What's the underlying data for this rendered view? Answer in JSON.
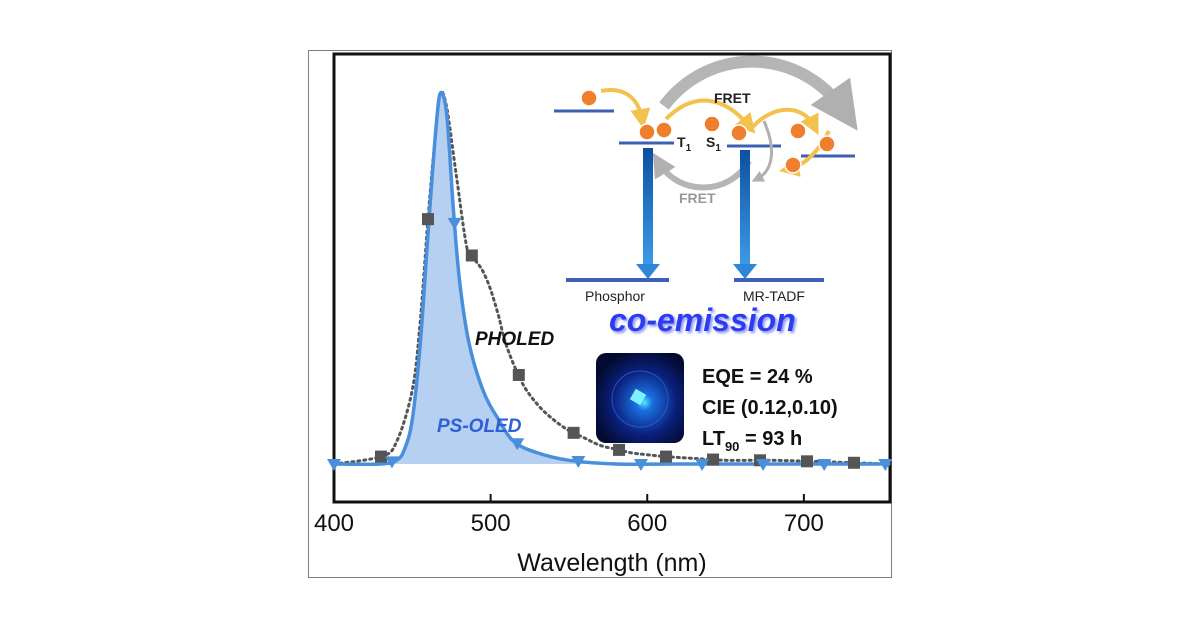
{
  "chart_data": {
    "type": "line",
    "title": "",
    "xlabel": "Wavelength (nm)",
    "ylabel": "",
    "xlim": [
      400,
      755
    ],
    "ylim": [
      0,
      1
    ],
    "x_ticks": [
      "400",
      "500",
      "600",
      "700"
    ],
    "grid": false,
    "series": [
      {
        "name": "PHOLED",
        "color": "#555555",
        "style": "dotted line with square markers",
        "x": [
          400,
          430,
          440,
          450,
          455,
          460,
          465,
          468,
          472,
          478,
          485,
          490,
          495,
          500,
          505,
          510,
          520,
          530,
          540,
          550,
          560,
          570,
          580,
          590,
          600,
          612,
          630,
          650,
          680,
          720,
          755
        ],
        "y": [
          0.0,
          0.02,
          0.06,
          0.2,
          0.38,
          0.66,
          0.9,
          1.0,
          0.96,
          0.78,
          0.58,
          0.55,
          0.52,
          0.47,
          0.4,
          0.32,
          0.22,
          0.16,
          0.12,
          0.09,
          0.07,
          0.05,
          0.04,
          0.03,
          0.025,
          0.02,
          0.015,
          0.01,
          0.01,
          0.005,
          0.0
        ],
        "markers_x": [
          430,
          460,
          488,
          518,
          553,
          582,
          612,
          642,
          672,
          702,
          732
        ]
      },
      {
        "name": "PS-OLED",
        "color": "#4a8fdb",
        "style": "solid line with shaded area and triangle markers",
        "x": [
          400,
          430,
          440,
          445,
          450,
          455,
          460,
          465,
          468,
          472,
          476,
          480,
          486,
          495,
          505,
          515,
          530,
          550,
          580,
          620,
          680,
          755
        ],
        "y": [
          0.0,
          0.0,
          0.01,
          0.04,
          0.12,
          0.32,
          0.62,
          0.9,
          1.0,
          0.94,
          0.7,
          0.5,
          0.33,
          0.2,
          0.12,
          0.06,
          0.03,
          0.01,
          0.0,
          0.0,
          0.0,
          0.0
        ],
        "markers_x": [
          400,
          437,
          477,
          517,
          556,
          596,
          635,
          674,
          713,
          752
        ]
      }
    ],
    "annotations": {
      "fret_top": "FRET",
      "fret_bottom": "FRET",
      "t1": "T",
      "t1_sub": "1",
      "s1": "S",
      "s1_sub": "1",
      "phosphor": "Phosphor",
      "mrtadf": "MR-TADF",
      "co_emission": "co-emission",
      "eqe": "EQE = 24 %",
      "cie": "CIE (0.12,0.10)",
      "lt_prefix": "LT",
      "lt_sub": "90",
      "lt_suffix": " = 93 h"
    }
  },
  "colors": {
    "pholed_line": "#555555",
    "psoled_line": "#4a8fdb",
    "psoled_fill": "#a9c8ee",
    "level": "#3d5fb6",
    "emission_arrow": "#1f78d1",
    "exciton": "#ef7f2c",
    "transfer_arrow": "#f2c14e",
    "fret_arrow": "#b0b0b0",
    "co_emission_text": "#2e3cf0"
  }
}
